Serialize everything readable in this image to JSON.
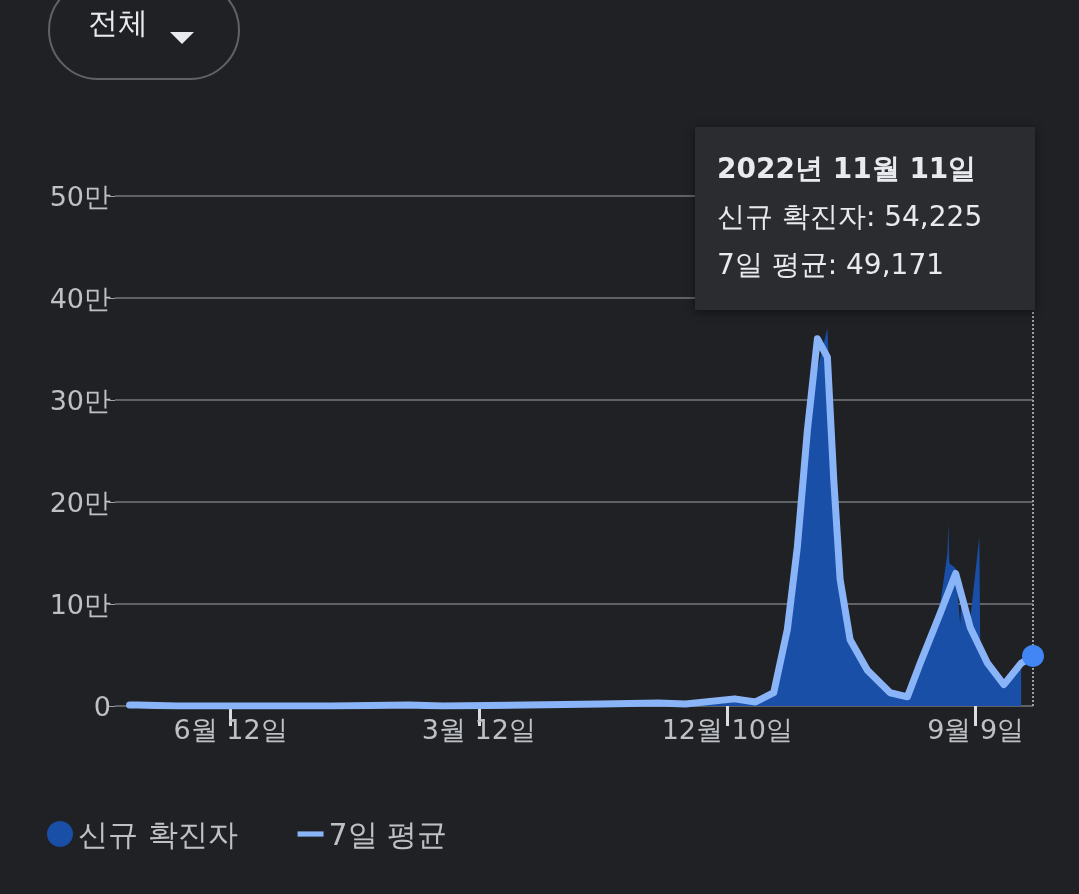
{
  "chart_data": {
    "type": "line",
    "annotations": [
      "전체",
      "2022년 11월 11일\n신규 확진자: 54,225\n7일 평균: 49,171"
    ],
    "xlim": [
      "2020-02-06",
      "2022-11-11"
    ],
    "xticks": [
      {
        "value": "2020-06-12",
        "label": "6월 12일"
      },
      {
        "value": "2021-03-12",
        "label": "3월 12일"
      },
      {
        "value": "2021-12-10",
        "label": "12월 10일"
      },
      {
        "value": "2022-09-09",
        "label": "9월 9일"
      }
    ],
    "ylim": [
      0,
      50
    ],
    "yticks": [
      0,
      {
        "value": 10,
        "label": "10만"
      },
      {
        "value": 20,
        "label": "20만"
      },
      {
        "value": 30,
        "label": "30만"
      },
      {
        "value": 40,
        "label": "40만"
      },
      {
        "value": 50,
        "label": "50만"
      }
    ],
    "grid": "y",
    "legend": "bottom left",
    "marker": "none",
    "line_style": "solid",
    "ref_lines": [
      {
        "axis": "x",
        "value": "2022-11-11",
        "label": null,
        "color": "#9aa0a6",
        "line_style": "dotted"
      }
    ],
    "series": [
      {
        "name": "신규 확진자",
        "type": "area",
        "color": "#1a4fa8",
        "x": [
          "2020-02-22",
          "2020-03-01",
          "2020-04-15",
          "2020-08-28",
          "2020-10-01",
          "2020-12-25",
          "2021-02-01",
          "2021-07-25",
          "2021-09-25",
          "2021-10-25",
          "2021-12-18",
          "2022-01-10",
          "2022-01-30",
          "2022-02-14",
          "2022-02-25",
          "2022-03-08",
          "2022-03-30",
          "2022-04-06",
          "2022-04-13",
          "2022-04-20",
          "2022-04-21",
          "2022-04-24",
          "2022-05-13",
          "2022-06-07",
          "2022-06-26",
          "2022-07-10",
          "2022-08-01",
          "2022-08-09",
          "2022-08-10",
          "2022-08-11",
          "2022-08-18",
          "2022-08-23",
          "2022-08-24",
          "2022-09-03",
          "2022-09-13",
          "2022-09-14",
          "2022-09-22",
          "2022-10-10",
          "2022-10-29"
        ],
        "values": [
          0.1,
          0.1,
          0,
          0,
          0,
          0.1,
          0,
          0.2,
          0.3,
          0.2,
          0.7,
          0.4,
          1.7,
          9,
          17,
          29,
          37,
          23.5,
          13,
          7.5,
          10.5,
          7,
          3.6,
          1.3,
          0.9,
          4.5,
          10,
          15,
          17.9,
          14,
          13.5,
          8,
          10.1,
          8.5,
          16.6,
          6,
          4.5,
          2.4,
          4.5
        ]
      },
      {
        "name": "7일 평균",
        "color": "#8ab4f8",
        "x": [
          "2020-02-22",
          "2020-03-01",
          "2020-04-15",
          "2020-08-28",
          "2020-10-01",
          "2020-12-25",
          "2021-02-01",
          "2021-07-25",
          "2021-09-25",
          "2021-10-25",
          "2021-12-18",
          "2022-01-10",
          "2022-01-30",
          "2022-02-14",
          "2022-02-25",
          "2022-03-08",
          "2022-03-19",
          "2022-03-30",
          "2022-04-06",
          "2022-04-13",
          "2022-04-24",
          "2022-05-13",
          "2022-06-07",
          "2022-06-26",
          "2022-07-10",
          "2022-08-01",
          "2022-08-18",
          "2022-09-03",
          "2022-09-22",
          "2022-10-10",
          "2022-10-29",
          "2022-11-11"
        ],
        "values": [
          0.1,
          0.1,
          0,
          0,
          0,
          0.1,
          0,
          0.2,
          0.3,
          0.2,
          0.7,
          0.4,
          1.3,
          7.5,
          15.6,
          27,
          36,
          34.2,
          22.2,
          12.4,
          6.5,
          3.5,
          1.3,
          0.9,
          4.2,
          9.1,
          13,
          7.7,
          4.2,
          2.1,
          4.2,
          4.9
        ]
      }
    ]
  }
}
